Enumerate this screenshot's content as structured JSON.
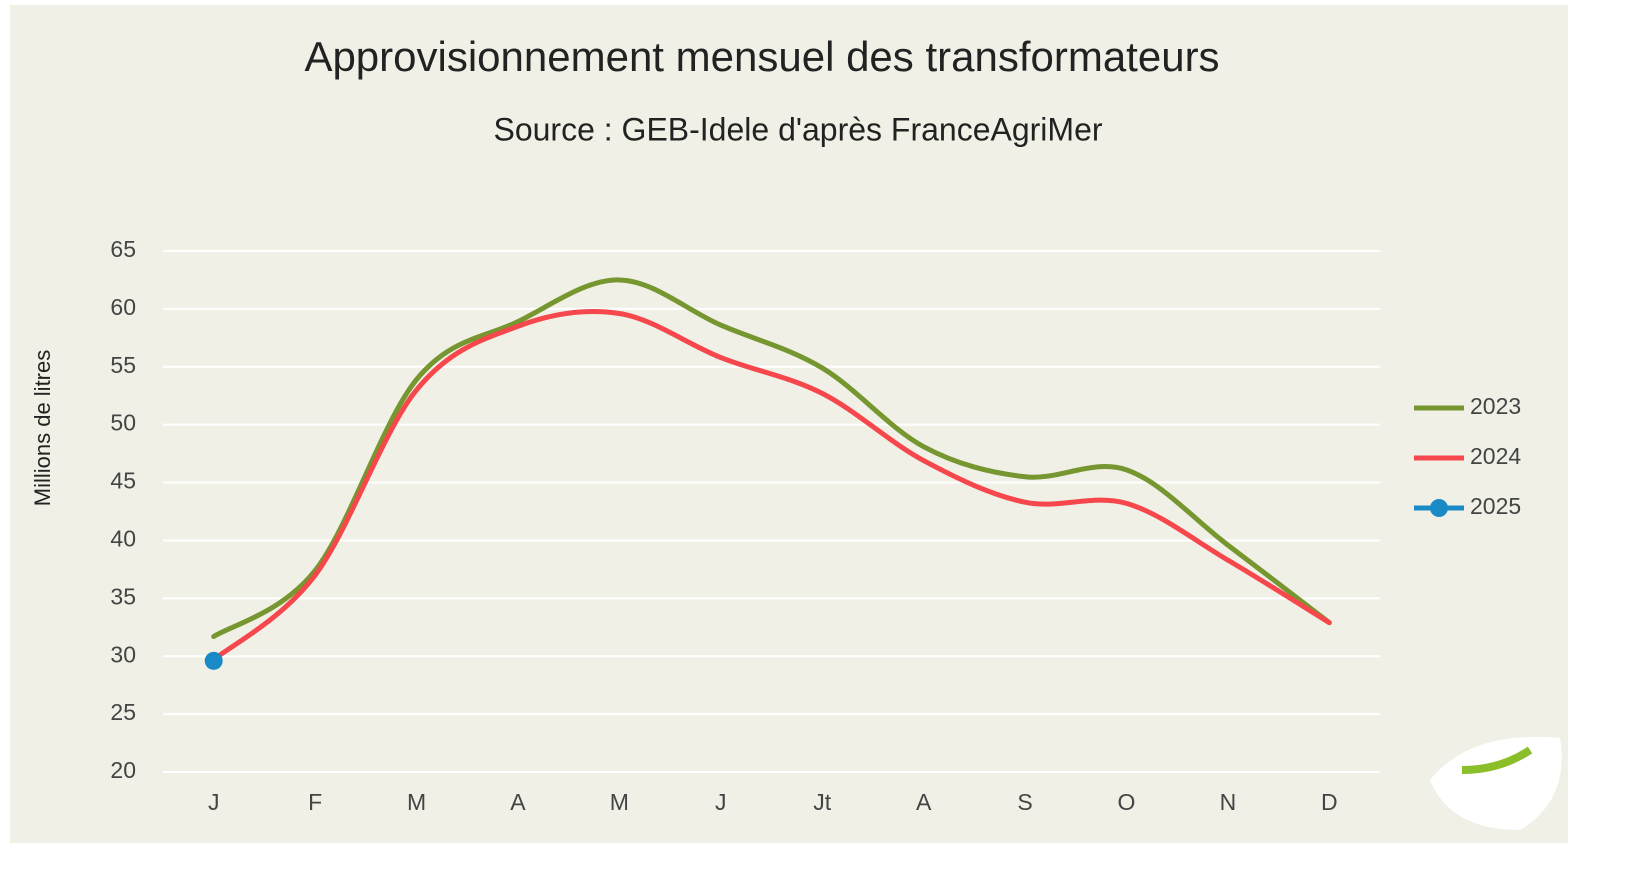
{
  "chart_data": {
    "type": "line",
    "title": "Approvisionnement mensuel des transformateurs",
    "subtitle": "Source : GEB-Idele d'après FranceAgriMer",
    "y_label": "Millions de litres",
    "categories": [
      "J",
      "F",
      "M",
      "A",
      "M",
      "J",
      "Jt",
      "A",
      "S",
      "O",
      "N",
      "D"
    ],
    "series": [
      {
        "name": "2023",
        "color": "#76962f",
        "values": [
          31.7,
          37.4,
          53.9,
          58.9,
          62.5,
          58.6,
          54.9,
          48.1,
          45.5,
          46.1,
          39.6,
          32.9
        ]
      },
      {
        "name": "2024",
        "color": "#f5474c",
        "values": [
          29.7,
          37.0,
          53.0,
          58.5,
          59.6,
          55.8,
          52.7,
          46.9,
          43.3,
          43.2,
          38.3,
          32.9
        ]
      },
      {
        "name": "2025",
        "color": "#1a8ac6",
        "marker": true,
        "values": [
          29.6,
          null,
          null,
          null,
          null,
          null,
          null,
          null,
          null,
          null,
          null,
          null
        ]
      }
    ],
    "ylim": [
      20,
      65
    ],
    "yticks": [
      20,
      25,
      30,
      35,
      40,
      45,
      50,
      55,
      60,
      65
    ],
    "grid": true,
    "smooth": true,
    "legend_position": "right"
  }
}
